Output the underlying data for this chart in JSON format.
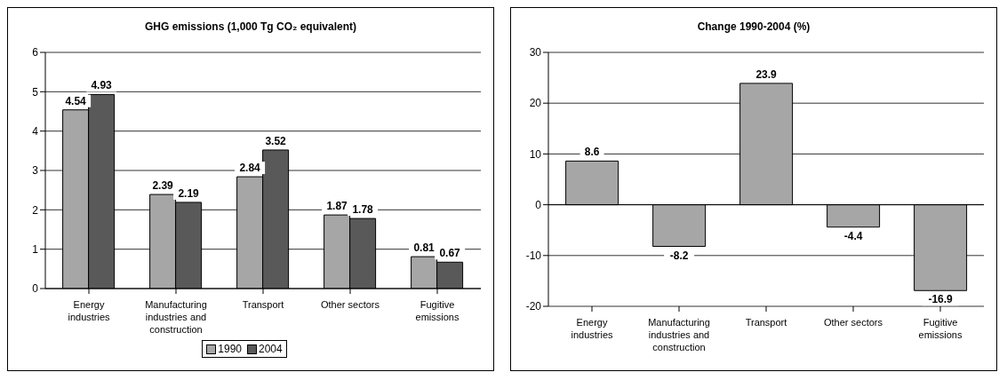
{
  "chart_data": [
    {
      "type": "bar",
      "title": "GHG emissions (1,000 Tg CO₂ equivalent)",
      "categories": [
        "Energy industries",
        "Manufacturing industries and construction",
        "Transport",
        "Other sectors",
        "Fugitive emissions"
      ],
      "series": [
        {
          "name": "1990",
          "color": "#a6a6a6",
          "values": [
            4.54,
            2.39,
            2.84,
            1.87,
            0.81
          ]
        },
        {
          "name": "2004",
          "color": "#595959",
          "values": [
            4.93,
            2.19,
            3.52,
            1.78,
            0.67
          ]
        }
      ],
      "ylim": [
        0,
        6
      ],
      "yticks": [
        0,
        1,
        2,
        3,
        4,
        5,
        6
      ],
      "grid": "y",
      "legend": "bottom",
      "data_labels": true
    },
    {
      "type": "bar",
      "title": "Change 1990-2004 (%)",
      "categories": [
        "Energy industries",
        "Manufacturing industries and construction",
        "Transport",
        "Other sectors",
        "Fugitive emissions"
      ],
      "color": "#a6a6a6",
      "values": [
        8.6,
        -8.2,
        23.9,
        -4.4,
        -16.9
      ],
      "ylim": [
        -20,
        30
      ],
      "yticks": [
        -20,
        -10,
        0,
        10,
        20,
        30
      ],
      "grid": "y",
      "data_labels": true
    }
  ]
}
